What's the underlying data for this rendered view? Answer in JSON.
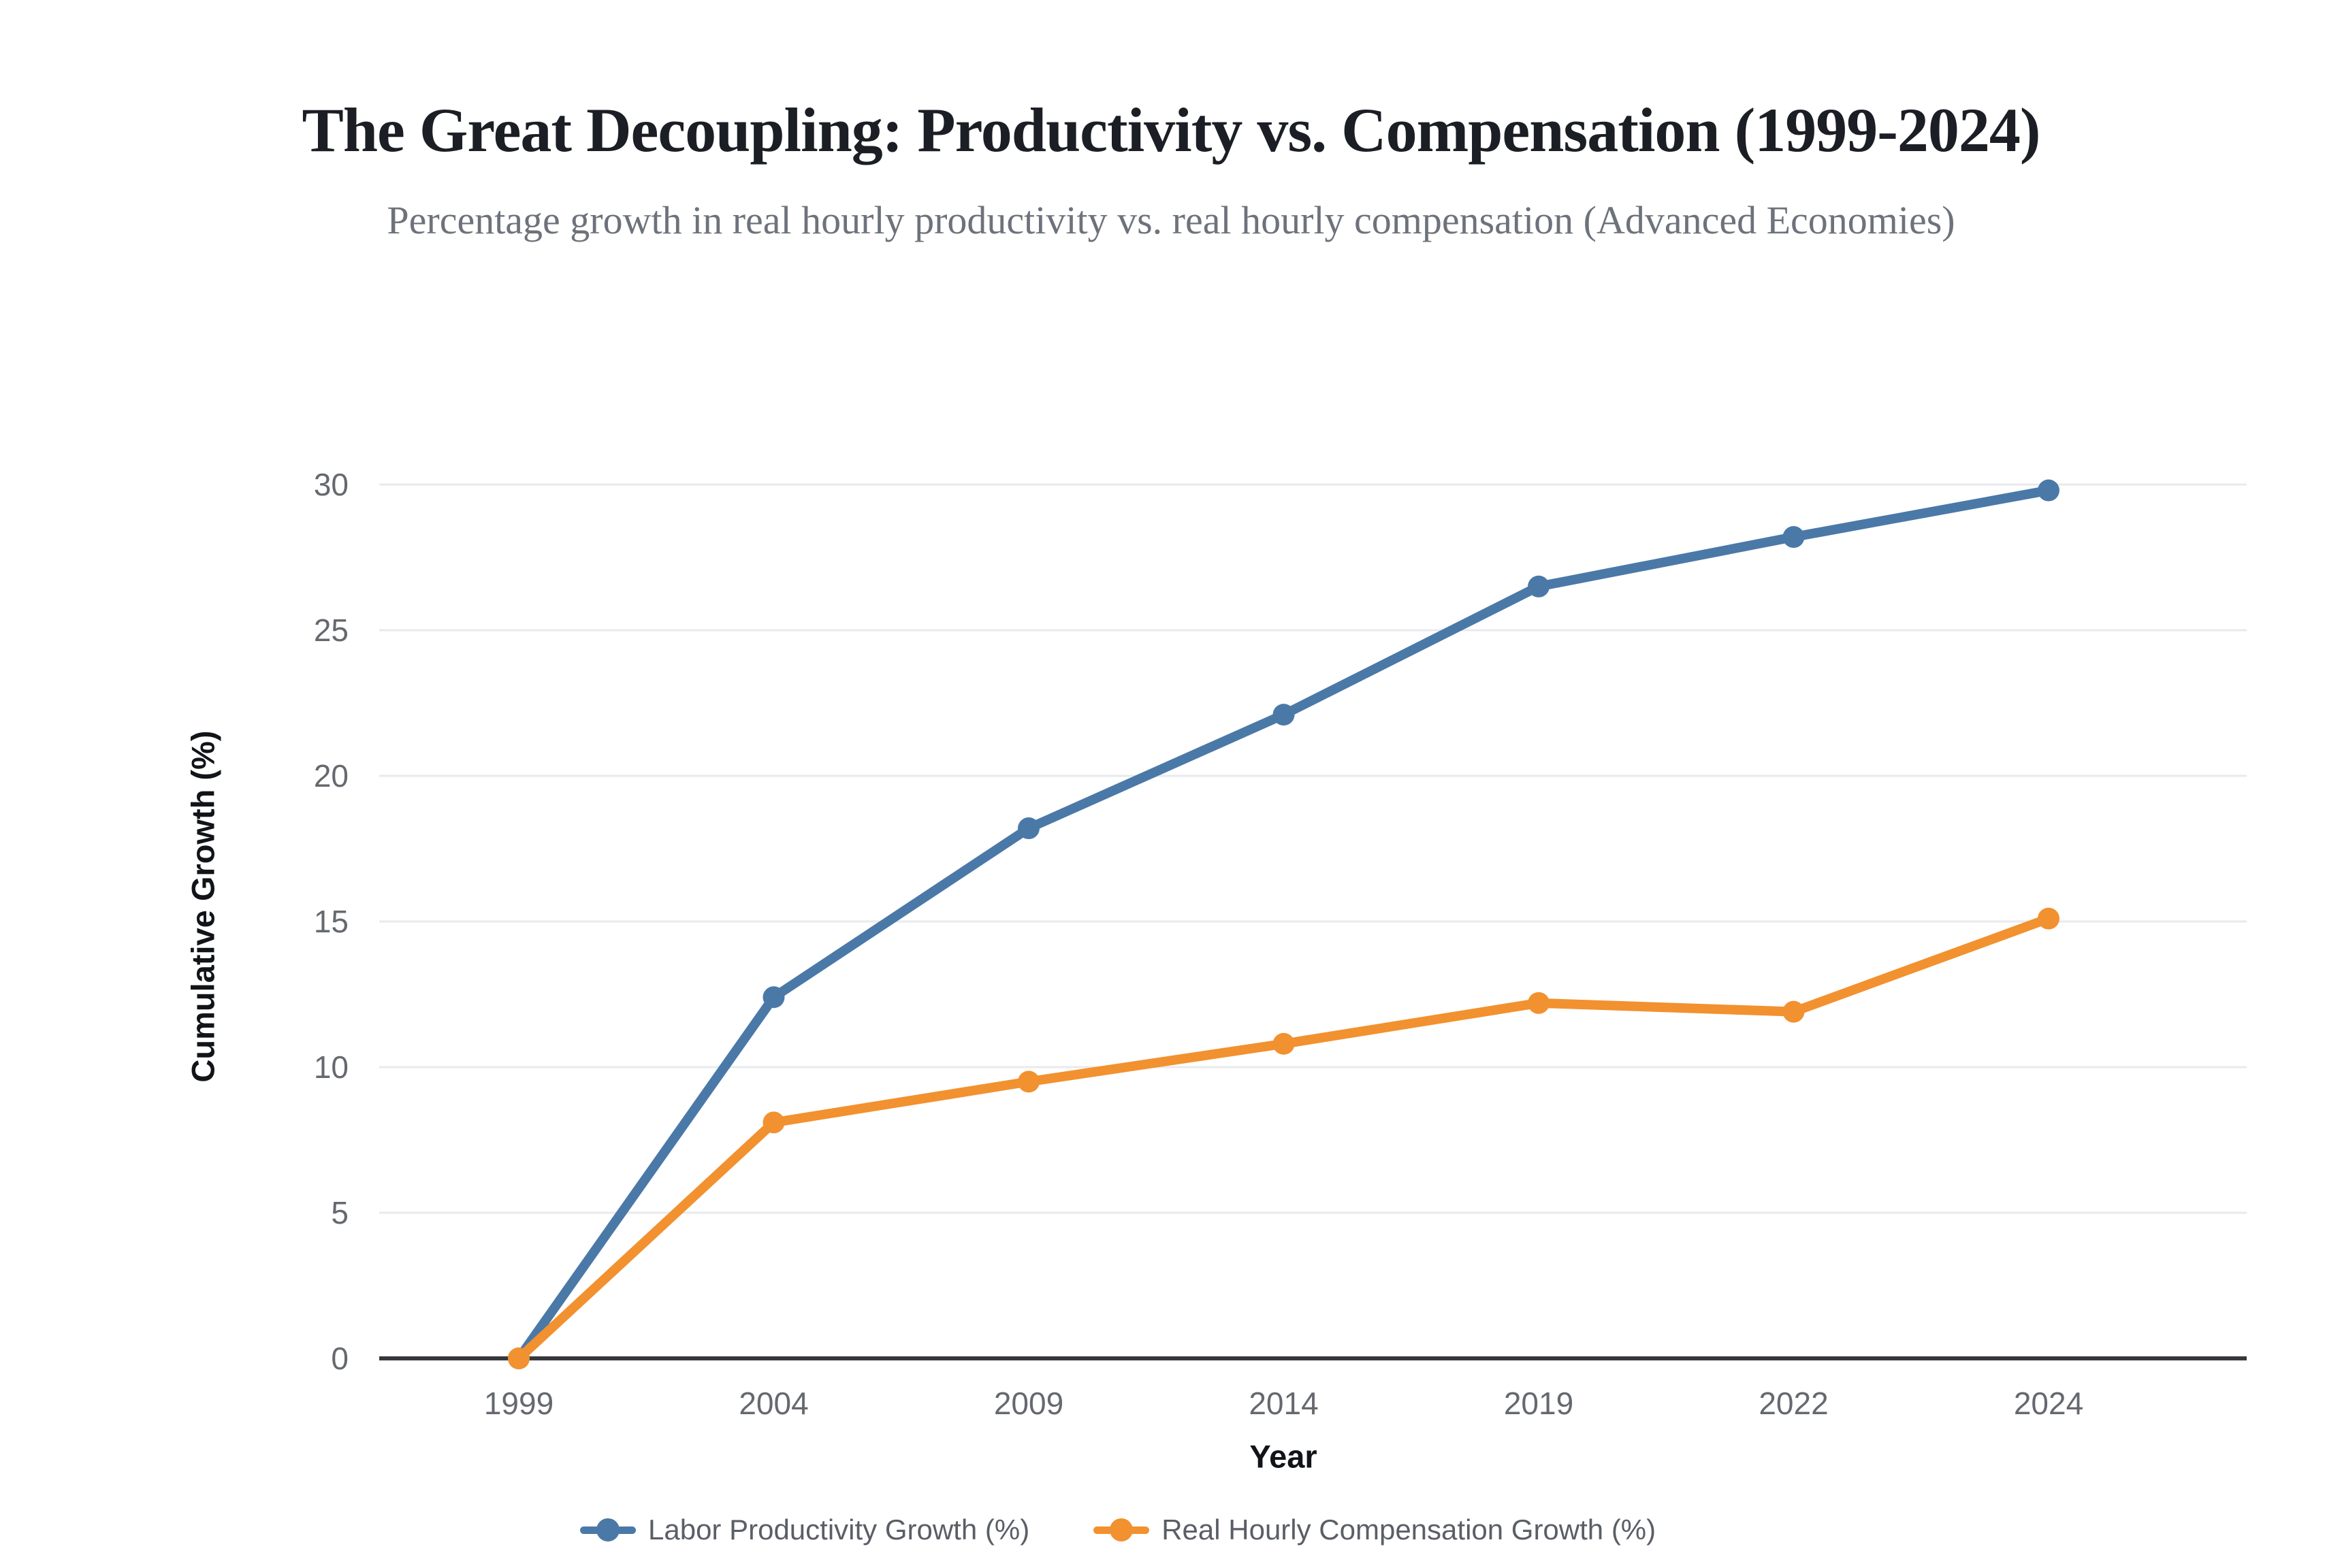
{
  "header": {
    "title": "The Great Decoupling: Productivity vs. Compensation (1999-2024)",
    "subtitle": "Percentage growth in real hourly productivity vs. real hourly compensation (Advanced Economies)"
  },
  "chart_data": {
    "type": "line",
    "title": "The Great Decoupling: Productivity vs. Compensation (1999-2024)",
    "subtitle": "Percentage growth in real hourly productivity vs. real hourly compensation (Advanced Economies)",
    "categories": [
      "1999",
      "2004",
      "2009",
      "2014",
      "2019",
      "2022",
      "2024"
    ],
    "series": [
      {
        "name": "Labor Productivity Growth (%)",
        "color": "#4a79a8",
        "values": [
          0,
          12.4,
          18.2,
          22.1,
          26.5,
          28.2,
          29.8
        ]
      },
      {
        "name": "Real Hourly Compensation Growth (%)",
        "color": "#f2912f",
        "values": [
          0,
          8.1,
          9.5,
          10.8,
          12.2,
          11.9,
          15.1
        ]
      }
    ],
    "xlabel": "Year",
    "ylabel": "Cumulative Growth (%)",
    "ylim": [
      0,
      30
    ],
    "yticks": [
      0,
      5,
      10,
      15,
      20,
      25,
      30
    ],
    "grid": true,
    "legend_position": "bottom"
  }
}
